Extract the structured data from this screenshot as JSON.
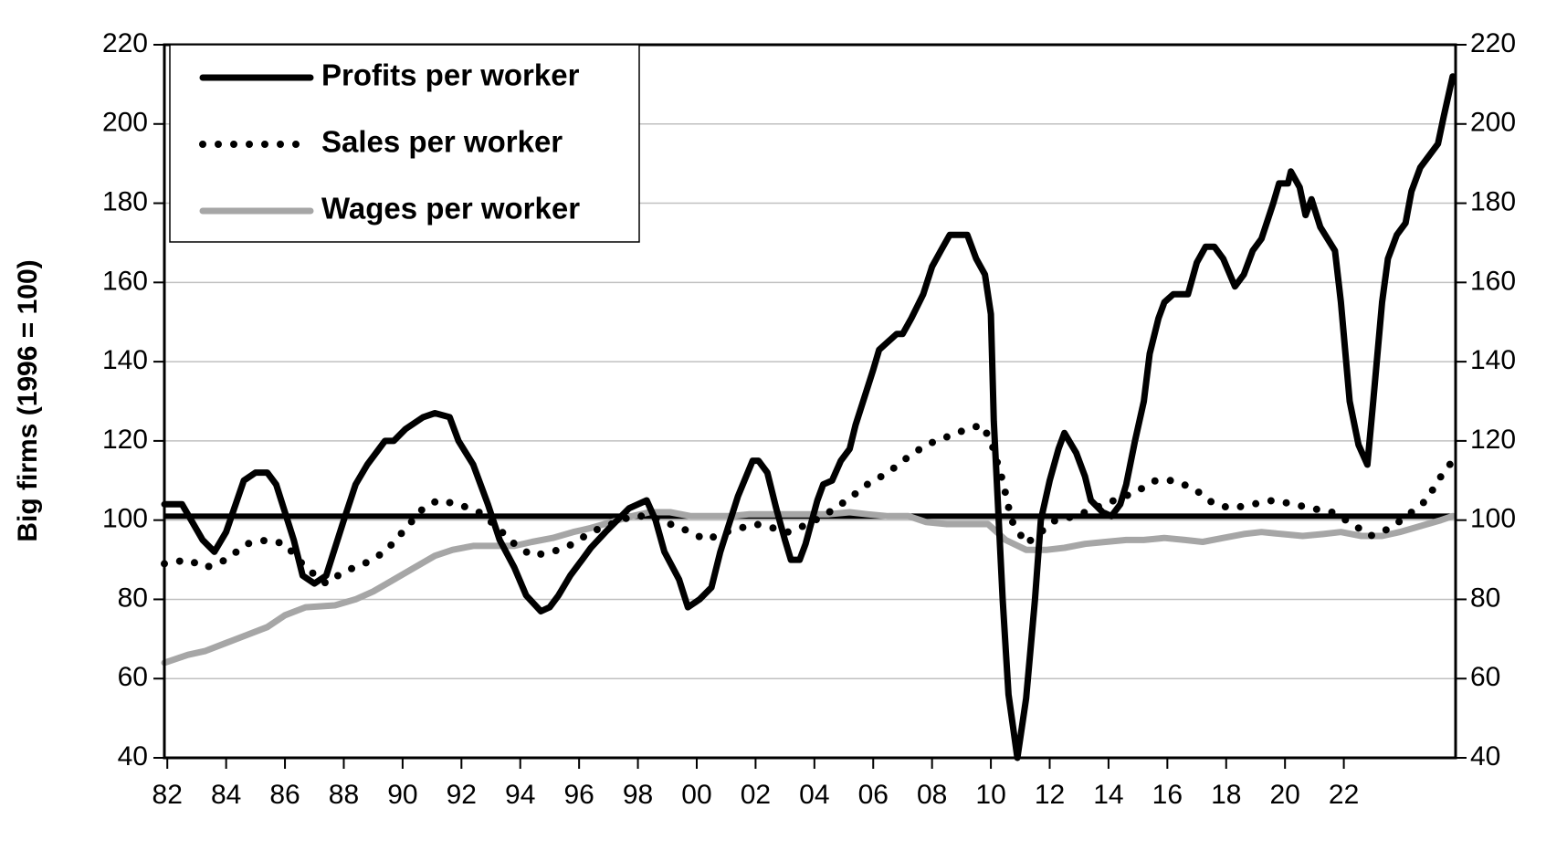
{
  "chart_data": {
    "type": "line",
    "y_label": "Big firms (1996 = 100)",
    "xlim": [
      1981.9,
      2025.8
    ],
    "xticks": [
      {
        "value": 1982,
        "label": "82"
      },
      {
        "value": 1984,
        "label": "84"
      },
      {
        "value": 1986,
        "label": "86"
      },
      {
        "value": 1988,
        "label": "88"
      },
      {
        "value": 1990,
        "label": "90"
      },
      {
        "value": 1992,
        "label": "92"
      },
      {
        "value": 1994,
        "label": "94"
      },
      {
        "value": 1996,
        "label": "96"
      },
      {
        "value": 1998,
        "label": "98"
      },
      {
        "value": 2000,
        "label": "00"
      },
      {
        "value": 2002,
        "label": "02"
      },
      {
        "value": 2004,
        "label": "04"
      },
      {
        "value": 2006,
        "label": "06"
      },
      {
        "value": 2008,
        "label": "08"
      },
      {
        "value": 2010,
        "label": "10"
      },
      {
        "value": 2012,
        "label": "12"
      },
      {
        "value": 2014,
        "label": "14"
      },
      {
        "value": 2016,
        "label": "16"
      },
      {
        "value": 2018,
        "label": "18"
      },
      {
        "value": 2020,
        "label": "20"
      },
      {
        "value": 2022,
        "label": "22"
      }
    ],
    "ylim": [
      40,
      220
    ],
    "yticks": [
      40,
      60,
      80,
      100,
      120,
      140,
      160,
      180,
      200,
      220
    ],
    "y2lim": [
      40,
      220
    ],
    "y2ticks": [
      40,
      60,
      80,
      100,
      120,
      140,
      160,
      180,
      200,
      220
    ],
    "grid": true,
    "legend": "top-left",
    "reference_line": 101,
    "series": [
      {
        "name": "Profits per worker",
        "color": "#000000",
        "style": "solid",
        "x": [
          1981.9,
          1982.5,
          1983.2,
          1983.6,
          1984.0,
          1984.6,
          1985.0,
          1985.4,
          1985.7,
          1986.3,
          1986.6,
          1987.0,
          1987.4,
          1988.0,
          1988.4,
          1988.8,
          1989.4,
          1989.7,
          1990.1,
          1990.7,
          1991.1,
          1991.6,
          1991.9,
          1992.4,
          1992.9,
          1993.3,
          1993.8,
          1994.2,
          1994.7,
          1995.0,
          1995.3,
          1995.7,
          1996.1,
          1996.4,
          1996.9,
          1997.3,
          1997.7,
          1998.3,
          1998.6,
          1998.9,
          1999.4,
          1999.7,
          2000.1,
          2000.5,
          2000.8,
          2001.1,
          2001.4,
          2001.9,
          2002.1,
          2002.4,
          2002.7,
          2003.0,
          2003.2,
          2003.5,
          2003.7,
          2004.1,
          2004.3,
          2004.6,
          2004.9,
          2005.2,
          2005.4,
          2005.7,
          2006.0,
          2006.2,
          2006.5,
          2006.8,
          2007.0,
          2007.3,
          2007.7,
          2008.0,
          2008.3,
          2008.6,
          2009.0,
          2009.2,
          2009.5,
          2009.8,
          2010.0,
          2010.1,
          2010.4,
          2010.6,
          2010.9,
          2011.2,
          2011.5,
          2011.7,
          2012.0,
          2012.3,
          2012.5,
          2012.9,
          2013.2,
          2013.4,
          2013.8,
          2014.1,
          2014.4,
          2014.6,
          2014.9,
          2015.2,
          2015.4,
          2015.7,
          2015.9,
          2016.2,
          2016.7,
          2017.0,
          2017.3,
          2017.6,
          2017.9,
          2018.3,
          2018.6,
          2018.9,
          2019.2,
          2019.6,
          2019.8,
          2020.1,
          2020.2,
          2020.5,
          2020.7,
          2020.9,
          2021.2,
          2021.7,
          2021.9,
          2022.2,
          2022.5,
          2022.8,
          2023.0,
          2023.3,
          2023.5,
          2023.8,
          2024.1,
          2024.3,
          2024.6,
          2024.9,
          2025.2,
          2025.4,
          2025.7
        ],
        "values": [
          104,
          104,
          95,
          92,
          97,
          110,
          112,
          112,
          109,
          95,
          86,
          84,
          86,
          100,
          109,
          114,
          120,
          120,
          123,
          126,
          127,
          126,
          120,
          114,
          104,
          95,
          88,
          81,
          77,
          78,
          81,
          86,
          90,
          93,
          97,
          100,
          103,
          105,
          100,
          92,
          85,
          78,
          80,
          83,
          92,
          99,
          106,
          115,
          115,
          112,
          103,
          95,
          90,
          90,
          94,
          105,
          109,
          110,
          115,
          118,
          124,
          131,
          138,
          143,
          145,
          147,
          147,
          151,
          157,
          164,
          168,
          172,
          172,
          172,
          166,
          162,
          152,
          125,
          80,
          56,
          40,
          55,
          80,
          100,
          110,
          118,
          122,
          117,
          111,
          105,
          102,
          101,
          104,
          109,
          120,
          130,
          142,
          151,
          155,
          157,
          157,
          165,
          169,
          169,
          166,
          159,
          162,
          168,
          171,
          180,
          185,
          185,
          188,
          184,
          177,
          181,
          174,
          168,
          155,
          130,
          119,
          114,
          130,
          155,
          166,
          172,
          175,
          183,
          189,
          192,
          195,
          202,
          212
        ]
      },
      {
        "name": "Sales per worker",
        "color": "#000000",
        "style": "dotted",
        "x": [
          1981.9,
          1982.7,
          1983.3,
          1984.0,
          1984.7,
          1985.4,
          1986.0,
          1986.7,
          1987.4,
          1988.0,
          1988.7,
          1989.4,
          1990.0,
          1990.7,
          1991.2,
          1991.9,
          1992.6,
          1993.1,
          1993.8,
          1994.4,
          1995.1,
          1995.8,
          1996.4,
          1997.1,
          1997.8,
          1998.4,
          1999.1,
          1999.8,
          2000.3,
          2001.0,
          2001.5,
          2002.0,
          2002.6,
          2003.1,
          2003.8,
          2004.5,
          2005.1,
          2005.8,
          2006.5,
          2007.2,
          2007.8,
          2008.5,
          2009.2,
          2009.7,
          2010.0,
          2010.4,
          2010.7,
          2011.2,
          2011.7,
          2012.2,
          2012.9,
          2013.5,
          2014.2,
          2014.9,
          2015.6,
          2016.2,
          2016.9,
          2017.6,
          2018.2,
          2018.9,
          2019.6,
          2020.3,
          2020.9,
          2021.6,
          2022.3,
          2022.9,
          2023.6,
          2024.3,
          2024.8,
          2025.3,
          2025.7
        ],
        "values": [
          89,
          90,
          88,
          90,
          94,
          95,
          94,
          88,
          84,
          87,
          89,
          92,
          97,
          103,
          105,
          104,
          102,
          99,
          94,
          91,
          92,
          94,
          97,
          99,
          101,
          101,
          99,
          97,
          95,
          97,
          98,
          99,
          98,
          97,
          99,
          102,
          105,
          109,
          112,
          116,
          119,
          121,
          123,
          124,
          120,
          110,
          100,
          94,
          97,
          100,
          101,
          103,
          105,
          107,
          110,
          110,
          108,
          104,
          103,
          104,
          105,
          104,
          103,
          102,
          99,
          96,
          98,
          102,
          105,
          111,
          115
        ]
      },
      {
        "name": "Wages per worker",
        "color": "#a6a6a6",
        "style": "solid",
        "x": [
          1981.9,
          1982.7,
          1983.3,
          1984.0,
          1984.7,
          1985.4,
          1986.0,
          1986.7,
          1987.7,
          1988.4,
          1989.0,
          1989.7,
          1990.4,
          1991.1,
          1991.7,
          1992.4,
          1993.1,
          1993.8,
          1994.4,
          1995.1,
          1995.8,
          1996.4,
          1997.1,
          1997.8,
          1998.4,
          1999.1,
          1999.8,
          2000.5,
          2001.1,
          2001.8,
          2002.5,
          2003.1,
          2003.8,
          2004.5,
          2005.2,
          2005.8,
          2006.5,
          2007.2,
          2007.8,
          2008.5,
          2009.2,
          2009.9,
          2010.5,
          2011.2,
          2011.9,
          2012.5,
          2013.2,
          2013.9,
          2014.6,
          2015.2,
          2015.9,
          2016.6,
          2017.2,
          2017.9,
          2018.6,
          2019.2,
          2019.9,
          2020.6,
          2021.3,
          2021.9,
          2022.6,
          2023.3,
          2023.9,
          2024.6,
          2025.3,
          2025.7
        ],
        "values": [
          64,
          66,
          67,
          69,
          71,
          73,
          76,
          78,
          78.5,
          80,
          82,
          85,
          88,
          91,
          92.5,
          93.5,
          93.5,
          93.5,
          94.5,
          95.5,
          97,
          98,
          99.5,
          101,
          102,
          102,
          101,
          101,
          101,
          101.5,
          101.5,
          101.5,
          101.5,
          101.5,
          102,
          101.5,
          101,
          101,
          99.5,
          99,
          99,
          99,
          95,
          92.5,
          92.5,
          93,
          94,
          94.5,
          95,
          95,
          95.5,
          95,
          94.5,
          95.5,
          96.5,
          97,
          96.5,
          96,
          96.5,
          97,
          96,
          96,
          97,
          98.5,
          100,
          101
        ]
      }
    ]
  }
}
